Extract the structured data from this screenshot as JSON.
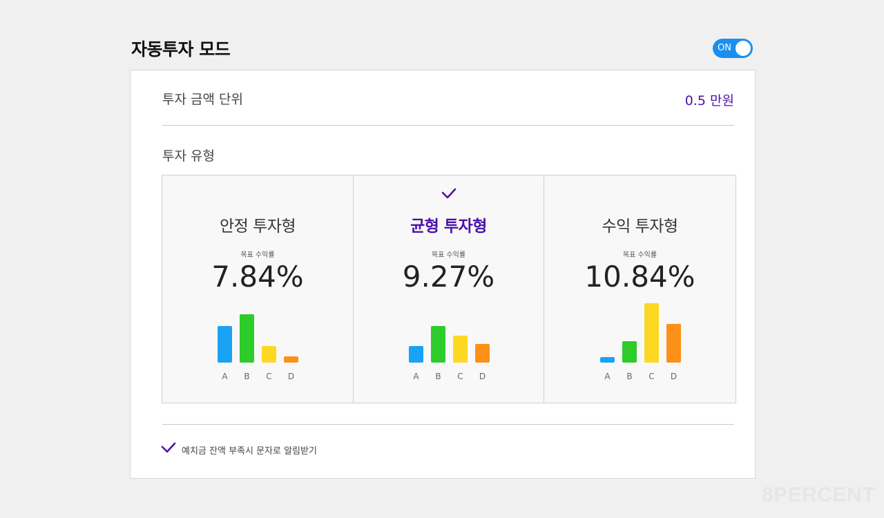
{
  "header": {
    "title": "자동투자 모드",
    "toggle_label": "ON"
  },
  "settings": {
    "unit_label": "투자 금액 단위",
    "unit_value": "0.5 만원",
    "type_label": "투자 유형"
  },
  "options": [
    {
      "name": "안정 투자형",
      "sub": "목표 수익률",
      "rate": "7.84%",
      "selected": false,
      "chart_data": {
        "type": "bar",
        "categories": [
          "A",
          "B",
          "C",
          "D"
        ],
        "values": [
          53,
          70,
          24,
          9
        ]
      }
    },
    {
      "name": "균형 투자형",
      "sub": "목표 수익률",
      "rate": "9.27%",
      "selected": true,
      "chart_data": {
        "type": "bar",
        "categories": [
          "A",
          "B",
          "C",
          "D"
        ],
        "values": [
          24,
          53,
          39,
          27
        ]
      }
    },
    {
      "name": "수익 투자형",
      "sub": "목표 수익률",
      "rate": "10.84%",
      "selected": false,
      "chart_data": {
        "type": "bar",
        "categories": [
          "A",
          "B",
          "C",
          "D"
        ],
        "values": [
          8,
          31,
          86,
          56
        ]
      }
    }
  ],
  "bar_colors": [
    "#1aa2f4",
    "#2ecc2b",
    "#fdd823",
    "#fd9016"
  ],
  "notify": {
    "label": "예치금 잔액 부족시 문자로 알림받기",
    "checked": true
  },
  "watermark": "8PERCENT",
  "colors": {
    "accent": "#4a12a8",
    "toggle": "#1b8ff0"
  }
}
